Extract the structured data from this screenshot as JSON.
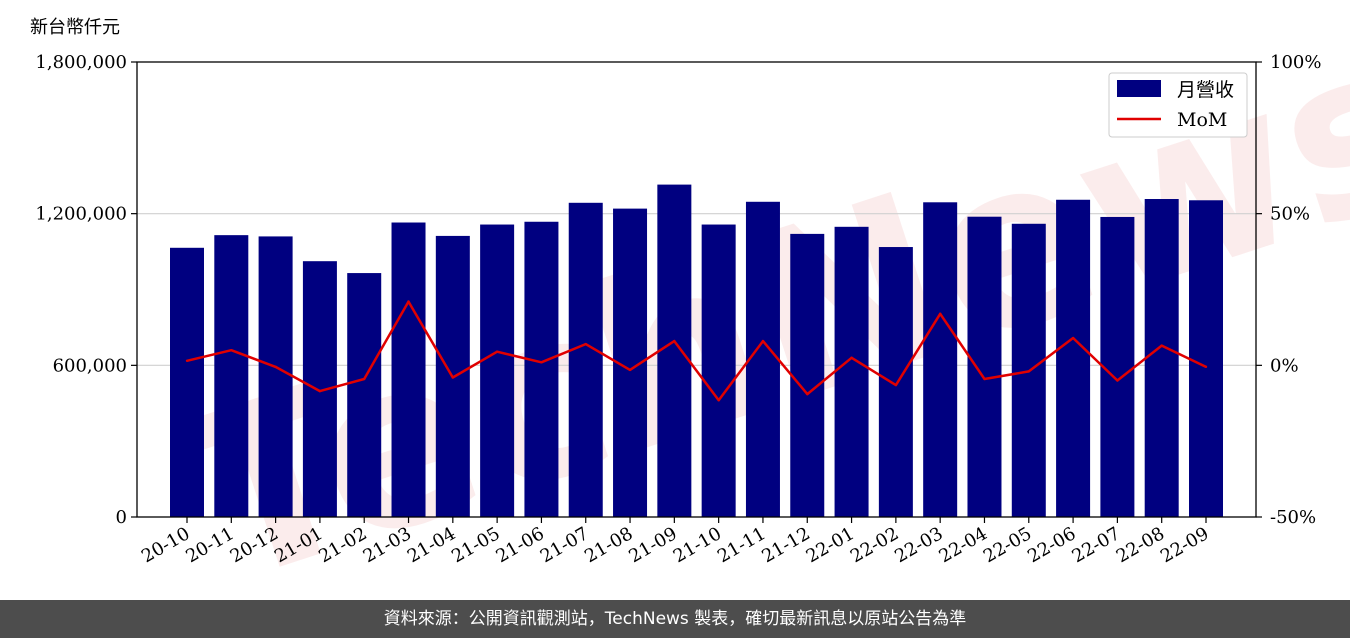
{
  "chart_data": {
    "type": "bar",
    "unit_label": "新台幣仟元",
    "categories": [
      "20-10",
      "20-11",
      "20-12",
      "21-01",
      "21-02",
      "21-03",
      "21-04",
      "21-05",
      "21-06",
      "21-07",
      "21-08",
      "21-09",
      "21-10",
      "21-11",
      "21-12",
      "22-01",
      "22-02",
      "22-03",
      "22-04",
      "22-05",
      "22-06",
      "22-07",
      "22-08",
      "22-09"
    ],
    "series": [
      {
        "name": "月營收",
        "type": "bar",
        "axis": "left",
        "color": "#000080",
        "values": [
          1065000,
          1115000,
          1110000,
          1012000,
          965000,
          1165000,
          1112000,
          1157000,
          1168000,
          1243000,
          1220000,
          1315000,
          1157000,
          1247000,
          1120000,
          1148000,
          1068000,
          1245000,
          1188000,
          1160000,
          1255000,
          1187000,
          1258000,
          1253000
        ]
      },
      {
        "name": "MoM",
        "type": "line",
        "axis": "right",
        "color": "#e00000",
        "values": [
          1.5,
          5.0,
          -0.5,
          -8.5,
          -4.5,
          21.0,
          -4.0,
          4.5,
          1.0,
          7.0,
          -1.5,
          8.0,
          -11.5,
          8.0,
          -9.5,
          2.5,
          -6.5,
          17.0,
          -4.5,
          -2.0,
          9.0,
          -5.0,
          6.5,
          -0.5
        ]
      }
    ],
    "y_left": {
      "ylim": [
        0,
        1800000
      ],
      "ticks": [
        0,
        600000,
        1200000,
        1800000
      ],
      "tick_labels": [
        "0",
        "600,000",
        "1,200,000",
        "1,800,000"
      ]
    },
    "y_right": {
      "ylim": [
        -50,
        100
      ],
      "ticks": [
        -50,
        0,
        50,
        100
      ],
      "tick_labels": [
        "-50%",
        "0%",
        "50%",
        "100%"
      ]
    },
    "grid": "horizontal",
    "legend": "top-right"
  },
  "footer": {
    "text": "資料來源：公開資訊觀測站，TechNews 製表，確切最新訊息以原站公告為準"
  }
}
